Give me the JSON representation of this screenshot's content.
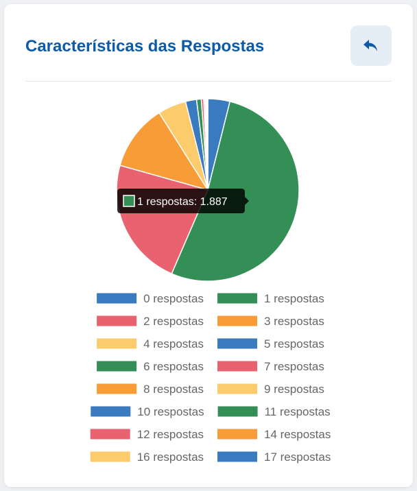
{
  "header": {
    "title": "Características das Respostas",
    "back_icon": "reply-icon"
  },
  "colors": {
    "title": "#0d5aa7",
    "button_bg": "#e5edf6",
    "palette": [
      "#3a7bbf",
      "#348f57",
      "#e9626f",
      "#f89c38",
      "#fccb6c"
    ]
  },
  "chart_data": {
    "type": "pie",
    "categories": [
      "0 respostas",
      "1 respostas",
      "2 respostas",
      "3 respostas",
      "4 respostas",
      "5 respostas",
      "6 respostas",
      "7 respostas",
      "8 respostas",
      "9 respostas",
      "10 respostas",
      "11 respostas",
      "12 respostas",
      "14 respostas",
      "16 respostas",
      "17 respostas"
    ],
    "values": [
      140,
      1887,
      820,
      420,
      180,
      70,
      30,
      15,
      8,
      5,
      4,
      3,
      2,
      2,
      1,
      1
    ],
    "legend_position": "bottom",
    "tooltip": {
      "label": "1 respostas: 1.887"
    }
  }
}
